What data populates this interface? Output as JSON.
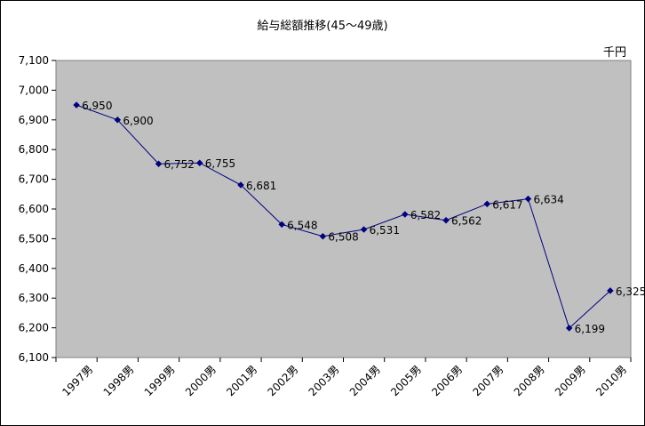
{
  "chart_data": {
    "type": "line",
    "title": "給与総額推移(45～49歳)",
    "unit_label": "千円",
    "categories": [
      "1997男",
      "1998男",
      "1999男",
      "2000男",
      "2001男",
      "2002男",
      "2003男",
      "2004男",
      "2005男",
      "2006男",
      "2007男",
      "2008男",
      "2009男",
      "2010男"
    ],
    "series": [
      {
        "values": [
          6950,
          6900,
          6752,
          6755,
          6681,
          6548,
          6508,
          6531,
          6582,
          6562,
          6617,
          6634,
          6199,
          6325
        ],
        "labels": [
          "6,950",
          "6,900",
          "6,752",
          "6,755",
          "6,681",
          "6,548",
          "6,508",
          "6,531",
          "6,582",
          "6,562",
          "6,617",
          "6,634",
          "6,199",
          "6,325"
        ],
        "color": "#000080"
      }
    ],
    "ylim": [
      6100,
      7100
    ],
    "yticks": [
      6100,
      6200,
      6300,
      6400,
      6500,
      6600,
      6700,
      6800,
      6900,
      7000,
      7100
    ],
    "ytick_labels": [
      "6,100",
      "6,200",
      "6,300",
      "6,400",
      "6,500",
      "6,600",
      "6,700",
      "6,800",
      "6,900",
      "7,000",
      "7,100"
    ],
    "plot_background": "#c0c0c0",
    "grid": false,
    "legend": "none"
  }
}
